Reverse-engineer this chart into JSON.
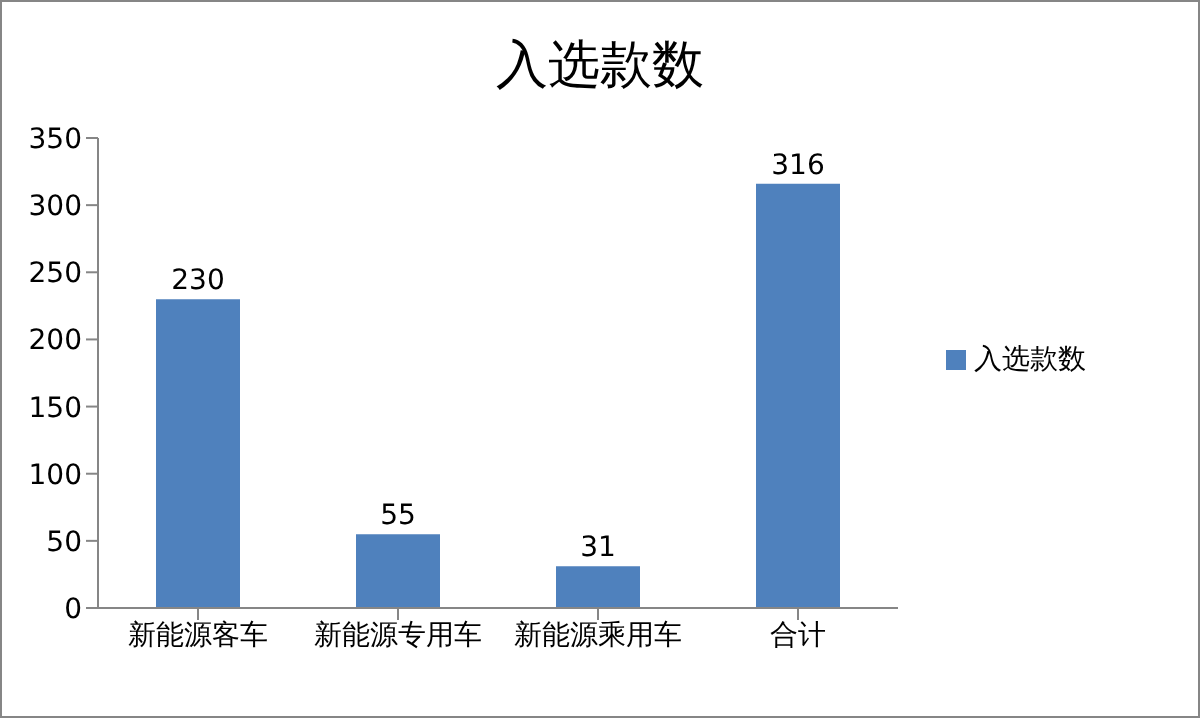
{
  "chart_data": {
    "type": "bar",
    "title": "入选款数",
    "categories": [
      "新能源客车",
      "新能源专用车",
      "新能源乘用车",
      "合计"
    ],
    "series": [
      {
        "name": "入选款数",
        "color": "#4f81bd",
        "values": [
          230,
          55,
          31,
          316
        ]
      }
    ],
    "ylim": [
      0,
      350
    ],
    "yticks": [
      0,
      50,
      100,
      150,
      200,
      250,
      300,
      350
    ],
    "grid": false,
    "legend": "right",
    "data_labels": true
  }
}
